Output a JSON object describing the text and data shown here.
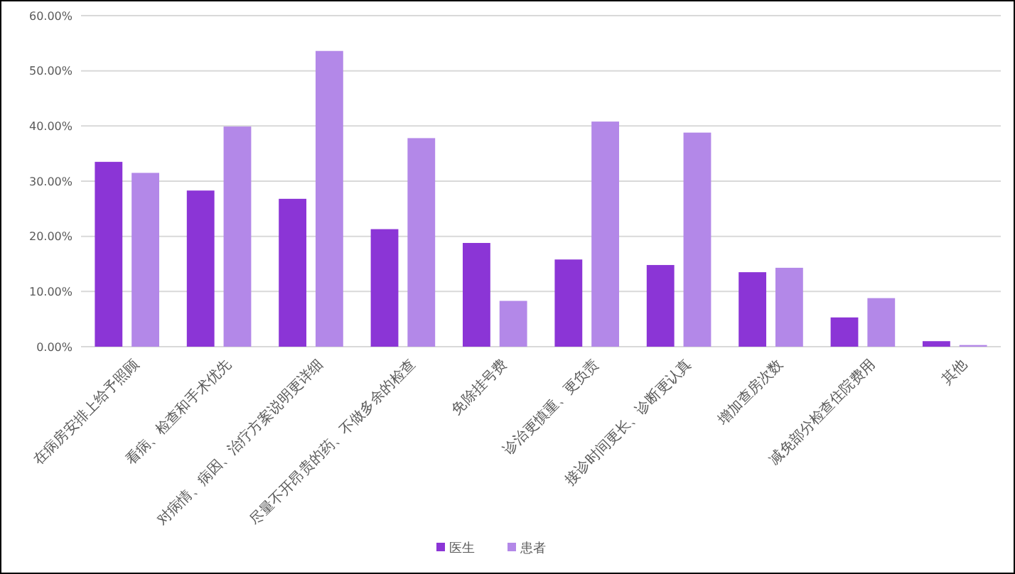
{
  "chart_data": {
    "type": "bar",
    "categories": [
      "在病房安排上给予照顾",
      "看病、检查和手术优先",
      "对病情、病因、治疗方案说明更详细",
      "尽量不开昂贵的药、不做多余的检查",
      "免除挂号费",
      "诊治更慎重、更负责",
      "接诊时间更长、诊断更认真",
      "增加查房次数",
      "减免部分检查住院费用",
      "其他"
    ],
    "series": [
      {
        "name": "医生",
        "color": "#8b35d6",
        "values": [
          33.5,
          28.3,
          26.8,
          21.3,
          18.8,
          15.8,
          14.8,
          13.5,
          5.3,
          1.0
        ]
      },
      {
        "name": "患者",
        "color": "#b388e8",
        "values": [
          31.5,
          39.9,
          53.6,
          37.8,
          8.3,
          40.8,
          38.8,
          14.3,
          8.8,
          0.3
        ]
      }
    ],
    "ylim": [
      0,
      60
    ],
    "yticks": [
      {
        "value": 0,
        "label": "0.00%"
      },
      {
        "value": 10,
        "label": "10.00%"
      },
      {
        "value": 20,
        "label": "20.00%"
      },
      {
        "value": 30,
        "label": "30.00%"
      },
      {
        "value": 40,
        "label": "40.00%"
      },
      {
        "value": 50,
        "label": "50.00%"
      },
      {
        "value": 60,
        "label": "60.00%"
      }
    ],
    "grid": "y",
    "legend": "bottom"
  }
}
